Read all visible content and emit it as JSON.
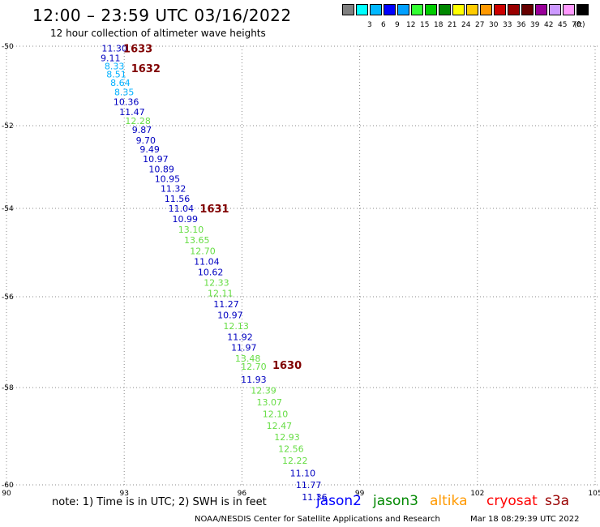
{
  "header": {
    "title": "12:00 – 23:59 UTC 03/16/2022",
    "subtitle": "12 hour collection of altimeter wave heights"
  },
  "scale": {
    "unit": "(ft)",
    "bins": [
      {
        "label": "",
        "color": "#808080"
      },
      {
        "label": "3",
        "color": "#00ffff"
      },
      {
        "label": "6",
        "color": "#00b8ff"
      },
      {
        "label": "9",
        "color": "#0000ff"
      },
      {
        "label": "12",
        "color": "#00a0ff"
      },
      {
        "label": "15",
        "color": "#33ff33"
      },
      {
        "label": "18",
        "color": "#00cc00"
      },
      {
        "label": "21",
        "color": "#008800"
      },
      {
        "label": "24",
        "color": "#ffff00"
      },
      {
        "label": "27",
        "color": "#ffcc00"
      },
      {
        "label": "30",
        "color": "#ff9900"
      },
      {
        "label": "33",
        "color": "#cc0000"
      },
      {
        "label": "36",
        "color": "#990000"
      },
      {
        "label": "39",
        "color": "#660000"
      },
      {
        "label": "42",
        "color": "#990099"
      },
      {
        "label": "45",
        "color": "#cc99ff"
      },
      {
        "label": "70",
        "color": "#ff99ff"
      },
      {
        "label": "",
        "color": "#000000"
      }
    ]
  },
  "axes": {
    "lat_ticks": [
      "-50",
      "-52",
      "-54",
      "-56",
      "-58",
      "-60"
    ],
    "lon_ticks": [
      "90",
      "93",
      "96",
      "99",
      "102",
      "105"
    ]
  },
  "colors": {
    "dark_blue": "#0000c0",
    "light_blue": "#00b0ff",
    "green": "#66dd44",
    "maroon": "#800000"
  },
  "observations": [
    {
      "v": "11.30",
      "lon": 92.75,
      "lat": -50.05,
      "c": "dark_blue"
    },
    {
      "v": "9.11",
      "lon": 92.65,
      "lat": -50.3,
      "c": "dark_blue"
    },
    {
      "v": "8.33",
      "lon": 92.75,
      "lat": -50.5,
      "c": "light_blue"
    },
    {
      "v": "8.51",
      "lon": 92.8,
      "lat": -50.7,
      "c": "light_blue"
    },
    {
      "v": "8.64",
      "lon": 92.9,
      "lat": -50.92,
      "c": "light_blue"
    },
    {
      "v": "8.35",
      "lon": 93.0,
      "lat": -51.15,
      "c": "light_blue"
    },
    {
      "v": "10.36",
      "lon": 93.05,
      "lat": -51.4,
      "c": "dark_blue"
    },
    {
      "v": "11.47",
      "lon": 93.2,
      "lat": -51.65,
      "c": "dark_blue"
    },
    {
      "v": "12.28",
      "lon": 93.35,
      "lat": -51.88,
      "c": "green"
    },
    {
      "v": "9.87",
      "lon": 93.45,
      "lat": -52.1,
      "c": "dark_blue"
    },
    {
      "v": "9.70",
      "lon": 93.55,
      "lat": -52.35,
      "c": "dark_blue"
    },
    {
      "v": "9.49",
      "lon": 93.65,
      "lat": -52.57,
      "c": "dark_blue"
    },
    {
      "v": "10.97",
      "lon": 93.8,
      "lat": -52.8,
      "c": "dark_blue"
    },
    {
      "v": "10.89",
      "lon": 93.95,
      "lat": -53.05,
      "c": "dark_blue"
    },
    {
      "v": "10.95",
      "lon": 94.1,
      "lat": -53.28,
      "c": "dark_blue"
    },
    {
      "v": "11.32",
      "lon": 94.25,
      "lat": -53.52,
      "c": "dark_blue"
    },
    {
      "v": "11.56",
      "lon": 94.35,
      "lat": -53.76,
      "c": "dark_blue"
    },
    {
      "v": "11.04",
      "lon": 94.45,
      "lat": -54.0,
      "c": "dark_blue"
    },
    {
      "v": "10.99",
      "lon": 94.55,
      "lat": -54.24,
      "c": "dark_blue"
    },
    {
      "v": "13.10",
      "lon": 94.7,
      "lat": -54.48,
      "c": "green"
    },
    {
      "v": "13.65",
      "lon": 94.85,
      "lat": -54.72,
      "c": "green"
    },
    {
      "v": "12.70",
      "lon": 95.0,
      "lat": -54.96,
      "c": "green"
    },
    {
      "v": "11.04",
      "lon": 95.1,
      "lat": -55.2,
      "c": "dark_blue"
    },
    {
      "v": "10.62",
      "lon": 95.2,
      "lat": -55.44,
      "c": "dark_blue"
    },
    {
      "v": "12.33",
      "lon": 95.35,
      "lat": -55.68,
      "c": "green"
    },
    {
      "v": "12.11",
      "lon": 95.45,
      "lat": -55.92,
      "c": "green"
    },
    {
      "v": "11.27",
      "lon": 95.6,
      "lat": -56.16,
      "c": "dark_blue"
    },
    {
      "v": "10.97",
      "lon": 95.7,
      "lat": -56.4,
      "c": "dark_blue"
    },
    {
      "v": "12.13",
      "lon": 95.85,
      "lat": -56.64,
      "c": "green"
    },
    {
      "v": "11.92",
      "lon": 95.95,
      "lat": -56.88,
      "c": "dark_blue"
    },
    {
      "v": "11.97",
      "lon": 96.05,
      "lat": -57.12,
      "c": "dark_blue"
    },
    {
      "v": "13.48",
      "lon": 96.15,
      "lat": -57.36,
      "c": "green"
    },
    {
      "v": "12.70",
      "lon": 96.3,
      "lat": -57.54,
      "c": "green"
    },
    {
      "v": "11.93",
      "lon": 96.3,
      "lat": -57.82,
      "c": "dark_blue"
    },
    {
      "v": "12.39",
      "lon": 96.55,
      "lat": -58.06,
      "c": "green"
    },
    {
      "v": "13.07",
      "lon": 96.7,
      "lat": -58.3,
      "c": "green"
    },
    {
      "v": "12.10",
      "lon": 96.85,
      "lat": -58.54,
      "c": "green"
    },
    {
      "v": "12.47",
      "lon": 96.95,
      "lat": -58.78,
      "c": "green"
    },
    {
      "v": "12.93",
      "lon": 97.15,
      "lat": -59.02,
      "c": "green"
    },
    {
      "v": "12.56",
      "lon": 97.25,
      "lat": -59.26,
      "c": "green"
    },
    {
      "v": "12.22",
      "lon": 97.35,
      "lat": -59.5,
      "c": "green"
    },
    {
      "v": "11.10",
      "lon": 97.55,
      "lat": -59.76,
      "c": "dark_blue"
    },
    {
      "v": "11.77",
      "lon": 97.7,
      "lat": -60.0,
      "c": "dark_blue"
    },
    {
      "v": "11.36",
      "lon": 97.85,
      "lat": -60.25,
      "c": "dark_blue"
    }
  ],
  "time_labels": [
    {
      "v": "1633",
      "lon": 93.35,
      "lat": -50.05
    },
    {
      "v": "1632",
      "lon": 93.55,
      "lat": -50.55
    },
    {
      "v": "1631",
      "lon": 95.3,
      "lat": -54.0
    },
    {
      "v": "1630",
      "lon": 97.15,
      "lat": -57.5
    }
  ],
  "footer": {
    "note": "note:  1) Time is in UTC; 2) SWH is in feet",
    "missions": [
      {
        "name": "jason2",
        "color": "#0000ff"
      },
      {
        "name": "jason3",
        "color": "#008800"
      },
      {
        "name": "altika",
        "color": "#ff9900"
      },
      {
        "name": "cryosat",
        "color": "#ff0000"
      },
      {
        "name": "s3a",
        "color": "#990000"
      }
    ],
    "credit": "NOAA/NESDIS Center for Satellite Applications and Research",
    "timestamp": "Mar 18 08:29:39 UTC 2022"
  }
}
